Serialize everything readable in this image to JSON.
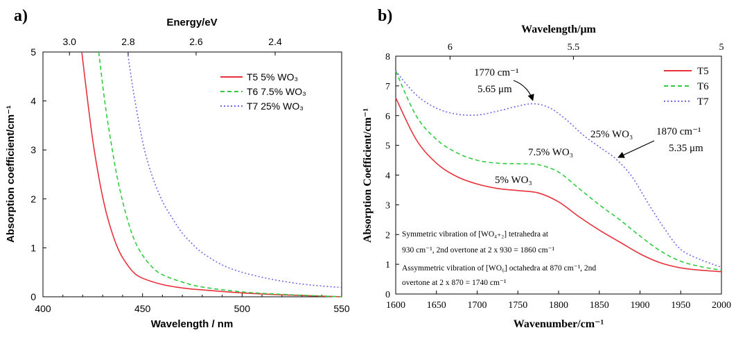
{
  "panels": [
    {
      "label": "a)"
    },
    {
      "label": "b)"
    }
  ],
  "chart_data": [
    {
      "type": "line",
      "panel": "a)",
      "xlabel": "Wavelength / nm",
      "ylabel": "Absorption coefficient/cm⁻¹",
      "top_axis_label": "Energy/eV",
      "xlim": [
        400,
        550
      ],
      "ylim": [
        0,
        5
      ],
      "x_ticks": [
        400,
        450,
        500,
        550
      ],
      "y_ticks": [
        0,
        1,
        2,
        3,
        4,
        5
      ],
      "top_ticks": [
        {
          "label": "3.0",
          "at_wavelength": 413.3
        },
        {
          "label": "2.8",
          "at_wavelength": 442.8
        },
        {
          "label": "2.6",
          "at_wavelength": 476.9
        },
        {
          "label": "2.4",
          "at_wavelength": 516.6
        }
      ],
      "grid": false,
      "legend_position": "top-right",
      "series": [
        {
          "name": "T5 5% WO₃",
          "color": "#e8303a",
          "dash": "solid",
          "x": [
            419.5,
            422,
            425,
            428,
            431,
            434,
            437,
            440,
            445,
            450,
            460,
            470,
            480,
            500,
            520,
            550
          ],
          "y": [
            5.0,
            4.15,
            3.2,
            2.45,
            1.85,
            1.4,
            1.05,
            0.8,
            0.52,
            0.38,
            0.25,
            0.18,
            0.14,
            0.08,
            0.04,
            0.0
          ]
        },
        {
          "name": "T6 7.5% WO₃",
          "color": "#2ecc40",
          "dash": "dashed",
          "x": [
            428,
            431,
            434,
            437,
            440,
            443,
            446,
            450,
            455,
            460,
            470,
            480,
            500,
            520,
            550
          ],
          "y": [
            5.0,
            4.0,
            3.2,
            2.5,
            1.95,
            1.5,
            1.15,
            0.85,
            0.6,
            0.45,
            0.3,
            0.2,
            0.1,
            0.05,
            0.0
          ]
        },
        {
          "name": "T7 25% WO₃",
          "color": "#6a6ae8",
          "dash": "dotted",
          "x": [
            442.5,
            445,
            448,
            451,
            455,
            460,
            465,
            470,
            475,
            480,
            490,
            500,
            510,
            520,
            530,
            540,
            550
          ],
          "y": [
            5.0,
            4.3,
            3.6,
            3.0,
            2.45,
            1.95,
            1.6,
            1.3,
            1.08,
            0.9,
            0.65,
            0.5,
            0.4,
            0.32,
            0.26,
            0.22,
            0.19
          ]
        }
      ]
    },
    {
      "type": "line",
      "panel": "b)",
      "xlabel": "Wavenumber/cm⁻¹",
      "ylabel": "Absorption Coefficient/cm⁻¹",
      "top_axis_label": "Wavelength/μm",
      "xlim": [
        1600,
        2000
      ],
      "ylim": [
        0,
        8
      ],
      "x_ticks": [
        1600,
        1650,
        1700,
        1750,
        1800,
        1850,
        1900,
        1950,
        2000
      ],
      "y_ticks": [
        0,
        1,
        2,
        3,
        4,
        5,
        6,
        7,
        8
      ],
      "top_ticks": [
        {
          "label": "6",
          "at_wavenumber": 1666.7
        },
        {
          "label": "5.5",
          "at_wavenumber": 1818.2
        },
        {
          "label": "5",
          "at_wavenumber": 2000
        }
      ],
      "grid": false,
      "legend_position": "top-right",
      "series": [
        {
          "name": "T5",
          "color": "#e8303a",
          "dash": "solid",
          "x": [
            1600,
            1625,
            1650,
            1675,
            1700,
            1725,
            1750,
            1775,
            1800,
            1825,
            1850,
            1875,
            1900,
            1925,
            1950,
            1975,
            2000
          ],
          "y": [
            6.6,
            5.2,
            4.4,
            3.95,
            3.7,
            3.55,
            3.48,
            3.4,
            3.1,
            2.6,
            2.15,
            1.75,
            1.35,
            1.05,
            0.88,
            0.8,
            0.75
          ]
        },
        {
          "name": "T6",
          "color": "#2ecc40",
          "dash": "dashed",
          "x": [
            1600,
            1625,
            1650,
            1675,
            1700,
            1725,
            1750,
            1775,
            1800,
            1825,
            1850,
            1875,
            1900,
            1925,
            1950,
            1975,
            2000
          ],
          "y": [
            7.5,
            6.0,
            5.2,
            4.75,
            4.5,
            4.4,
            4.38,
            4.35,
            4.1,
            3.55,
            3.0,
            2.5,
            1.95,
            1.45,
            1.1,
            0.92,
            0.8
          ]
        },
        {
          "name": "T7",
          "color": "#6a6ae8",
          "dash": "dotted",
          "x": [
            1600,
            1625,
            1650,
            1675,
            1700,
            1725,
            1750,
            1770,
            1790,
            1810,
            1830,
            1850,
            1870,
            1890,
            1910,
            1930,
            1950,
            1975,
            2000
          ],
          "y": [
            7.5,
            6.7,
            6.25,
            6.05,
            6.02,
            6.15,
            6.32,
            6.4,
            6.25,
            5.85,
            5.35,
            4.95,
            4.55,
            3.95,
            3.05,
            2.2,
            1.5,
            1.15,
            0.9
          ]
        }
      ],
      "annotations": [
        {
          "text_lines": [
            "1770 cm⁻¹",
            "5.65 μm"
          ],
          "points_to": [
            1770,
            6.4
          ]
        },
        {
          "text_lines": [
            "1870 cm⁻¹",
            "5.35 μm"
          ],
          "points_to": [
            1870,
            4.55
          ]
        },
        {
          "text": "25% WO₃"
        },
        {
          "text": "7.5% WO₃"
        },
        {
          "text": "5% WO₃"
        },
        {
          "text_lines": [
            "Symmetric vibration of [WO₄₊₂] tetrahedra at",
            "930 cm⁻¹, 2nd overtone at 2 x 930 = 1860 cm⁻¹"
          ]
        },
        {
          "text_lines": [
            "Assymmetric vibration of [WO₆] octahedra at 870 cm⁻¹, 2nd",
            "overtone at 2 x 870 = 1740 cm⁻¹"
          ]
        }
      ]
    }
  ]
}
